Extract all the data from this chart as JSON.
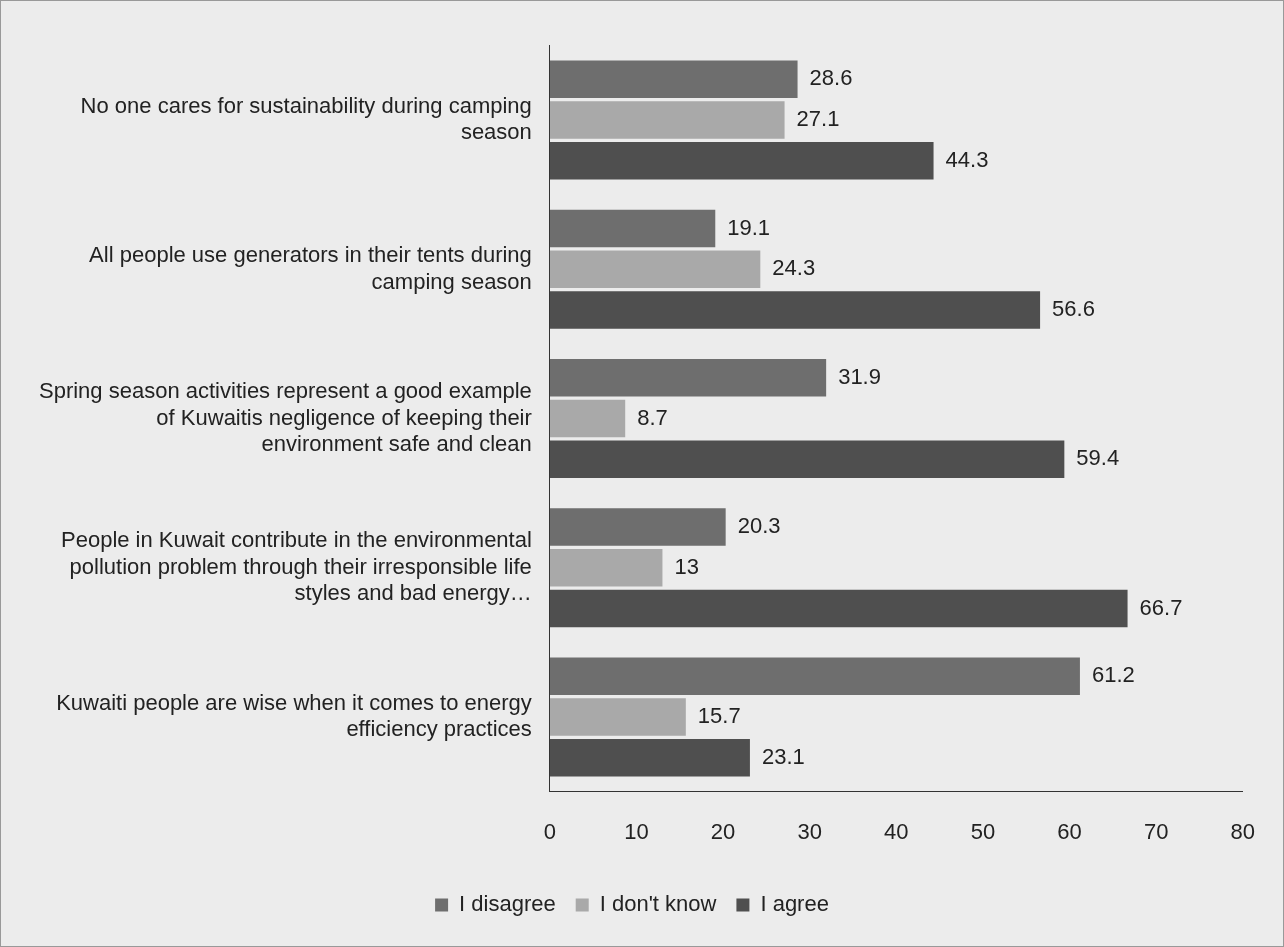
{
  "chart_data": {
    "type": "bar",
    "orientation": "horizontal",
    "categories": [
      "No one cares for sustainability during camping season",
      "All people use generators in their tents during camping season",
      "Spring season activities represent a good example of Kuwaitis negligence of keeping their environment safe and clean",
      "People in Kuwait contribute in the environmental pollution problem through their irresponsible life styles and bad energy…",
      "Kuwaiti people are wise when it comes to energy efficiency practices"
    ],
    "series": [
      {
        "name": "I disagree",
        "color": "#6e6e6e",
        "values": [
          28.6,
          19.1,
          31.9,
          20.3,
          61.2
        ]
      },
      {
        "name": "I don't know",
        "color": "#a9a9a9",
        "values": [
          27.1,
          24.3,
          8.7,
          13,
          15.7
        ]
      },
      {
        "name": "I agree",
        "color": "#4f4f4f",
        "values": [
          44.3,
          56.6,
          59.4,
          66.7,
          23.1
        ]
      }
    ],
    "xlim": [
      0,
      80
    ],
    "xticks": [
      0,
      10,
      20,
      30,
      40,
      50,
      60,
      70,
      80
    ],
    "grid": false,
    "legend": "bottom",
    "data_labels": true
  }
}
